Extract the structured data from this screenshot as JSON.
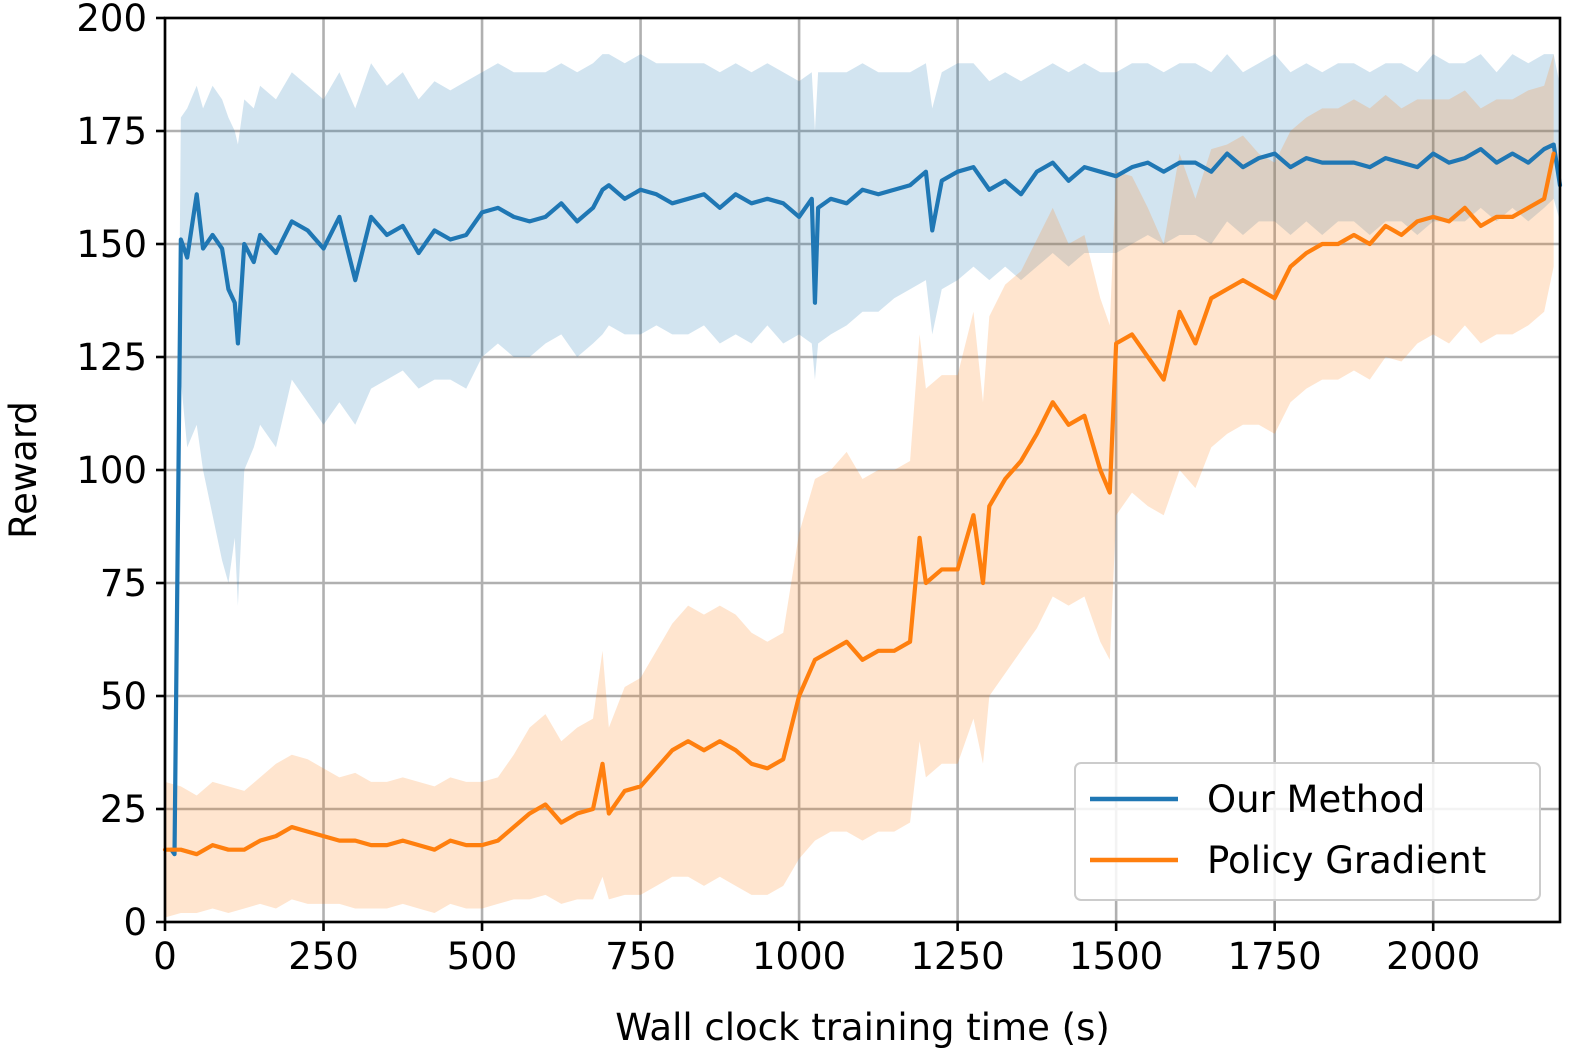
{
  "chart_data": {
    "type": "line",
    "title": "",
    "xlabel": "Wall clock training time (s)",
    "ylabel": "Reward",
    "xlim": [
      0,
      2200
    ],
    "ylim": [
      0,
      200
    ],
    "xticks": [
      0,
      250,
      500,
      750,
      1000,
      1250,
      1500,
      1750,
      2000
    ],
    "xtick_labels": [
      "0",
      "250",
      "500",
      "750",
      "1000",
      "1250",
      "1500",
      "1750",
      "2000"
    ],
    "yticks": [
      0,
      25,
      50,
      75,
      100,
      125,
      150,
      175,
      200
    ],
    "ytick_labels": [
      "0",
      "25",
      "50",
      "75",
      "100",
      "125",
      "150",
      "175",
      "200"
    ],
    "grid": true,
    "legend_position": "lower-right",
    "series": [
      {
        "name": "Our Method",
        "color": "#1f77b4",
        "band_color": "#1f77b4",
        "band_opacity": 0.2,
        "x": [
          10,
          15,
          25,
          35,
          50,
          60,
          75,
          90,
          100,
          110,
          115,
          125,
          140,
          150,
          175,
          200,
          225,
          250,
          275,
          300,
          325,
          350,
          375,
          400,
          425,
          450,
          475,
          500,
          525,
          550,
          575,
          600,
          625,
          650,
          675,
          690,
          700,
          725,
          750,
          775,
          800,
          825,
          850,
          875,
          900,
          925,
          950,
          975,
          1000,
          1020,
          1025,
          1030,
          1050,
          1075,
          1100,
          1125,
          1150,
          1175,
          1200,
          1210,
          1225,
          1250,
          1275,
          1300,
          1325,
          1350,
          1375,
          1400,
          1425,
          1450,
          1475,
          1500,
          1525,
          1550,
          1575,
          1600,
          1625,
          1650,
          1675,
          1700,
          1725,
          1750,
          1775,
          1800,
          1825,
          1850,
          1875,
          1900,
          1925,
          1950,
          1975,
          2000,
          2025,
          2050,
          2075,
          2100,
          2125,
          2150,
          2175,
          2190,
          2200
        ],
        "y": [
          16,
          15,
          151,
          147,
          161,
          149,
          152,
          149,
          140,
          137,
          128,
          150,
          146,
          152,
          148,
          155,
          153,
          149,
          156,
          142,
          156,
          152,
          154,
          148,
          153,
          151,
          152,
          157,
          158,
          156,
          155,
          156,
          159,
          155,
          158,
          162,
          163,
          160,
          162,
          161,
          159,
          160,
          161,
          158,
          161,
          159,
          160,
          159,
          156,
          160,
          137,
          158,
          160,
          159,
          162,
          161,
          162,
          163,
          166,
          153,
          164,
          166,
          167,
          162,
          164,
          161,
          166,
          168,
          164,
          167,
          166,
          165,
          167,
          168,
          166,
          168,
          168,
          166,
          170,
          167,
          169,
          170,
          167,
          169,
          168,
          168,
          168,
          167,
          169,
          168,
          167,
          170,
          168,
          169,
          171,
          168,
          170,
          168,
          171,
          172,
          163
        ],
        "y_lower": [
          16,
          15,
          120,
          105,
          110,
          100,
          90,
          80,
          75,
          85,
          70,
          100,
          105,
          110,
          105,
          120,
          115,
          110,
          115,
          110,
          118,
          120,
          122,
          118,
          120,
          120,
          118,
          125,
          128,
          125,
          125,
          128,
          130,
          125,
          128,
          130,
          132,
          130,
          130,
          132,
          130,
          130,
          132,
          128,
          130,
          128,
          132,
          128,
          130,
          128,
          120,
          128,
          130,
          132,
          135,
          135,
          138,
          140,
          142,
          130,
          140,
          142,
          145,
          142,
          145,
          142,
          145,
          148,
          145,
          148,
          148,
          148,
          150,
          152,
          150,
          152,
          152,
          150,
          155,
          152,
          155,
          155,
          152,
          155,
          152,
          155,
          155,
          152,
          155,
          155,
          152,
          155,
          155,
          155,
          158,
          155,
          158,
          155,
          158,
          160,
          155
        ],
        "y_upper": [
          16,
          15,
          178,
          180,
          185,
          180,
          185,
          182,
          178,
          175,
          172,
          182,
          180,
          185,
          182,
          188,
          185,
          182,
          188,
          180,
          190,
          185,
          188,
          182,
          186,
          184,
          186,
          188,
          190,
          188,
          188,
          188,
          190,
          188,
          190,
          192,
          192,
          190,
          192,
          190,
          190,
          190,
          190,
          188,
          190,
          188,
          190,
          188,
          186,
          188,
          175,
          188,
          188,
          188,
          190,
          188,
          188,
          188,
          190,
          180,
          188,
          190,
          190,
          186,
          188,
          186,
          188,
          190,
          188,
          190,
          188,
          188,
          190,
          190,
          188,
          190,
          190,
          188,
          192,
          188,
          190,
          192,
          188,
          190,
          188,
          190,
          190,
          188,
          190,
          190,
          188,
          192,
          190,
          190,
          192,
          188,
          192,
          190,
          192,
          192,
          185
        ]
      },
      {
        "name": "Policy Gradient",
        "color": "#ff7f0e",
        "band_color": "#ff7f0e",
        "band_opacity": 0.2,
        "x": [
          0,
          25,
          50,
          75,
          100,
          125,
          150,
          175,
          200,
          225,
          250,
          275,
          300,
          325,
          350,
          375,
          400,
          425,
          450,
          475,
          500,
          525,
          550,
          575,
          600,
          625,
          650,
          675,
          690,
          700,
          725,
          750,
          775,
          800,
          825,
          850,
          875,
          900,
          925,
          950,
          975,
          1000,
          1025,
          1050,
          1075,
          1100,
          1125,
          1150,
          1175,
          1190,
          1200,
          1225,
          1250,
          1275,
          1290,
          1300,
          1325,
          1350,
          1375,
          1400,
          1425,
          1450,
          1475,
          1490,
          1500,
          1525,
          1550,
          1575,
          1600,
          1625,
          1650,
          1675,
          1700,
          1725,
          1750,
          1775,
          1800,
          1825,
          1850,
          1875,
          1900,
          1925,
          1950,
          1975,
          2000,
          2025,
          2050,
          2075,
          2100,
          2125,
          2150,
          2175,
          2190
        ],
        "y": [
          16,
          16,
          15,
          17,
          16,
          16,
          18,
          19,
          21,
          20,
          19,
          18,
          18,
          17,
          17,
          18,
          17,
          16,
          18,
          17,
          17,
          18,
          21,
          24,
          26,
          22,
          24,
          25,
          35,
          24,
          29,
          30,
          34,
          38,
          40,
          38,
          40,
          38,
          35,
          34,
          36,
          50,
          58,
          60,
          62,
          58,
          60,
          60,
          62,
          85,
          75,
          78,
          78,
          90,
          75,
          92,
          98,
          102,
          108,
          115,
          110,
          112,
          100,
          95,
          128,
          130,
          125,
          120,
          135,
          128,
          138,
          140,
          142,
          140,
          138,
          145,
          148,
          150,
          150,
          152,
          150,
          154,
          152,
          155,
          156,
          155,
          158,
          154,
          156,
          156,
          158,
          160,
          170
        ],
        "y_lower": [
          1,
          2,
          2,
          3,
          2,
          3,
          4,
          3,
          5,
          4,
          4,
          4,
          3,
          3,
          3,
          4,
          3,
          2,
          4,
          3,
          3,
          4,
          5,
          5,
          6,
          4,
          5,
          5,
          10,
          5,
          6,
          6,
          8,
          10,
          10,
          8,
          10,
          8,
          6,
          6,
          8,
          14,
          18,
          20,
          20,
          18,
          20,
          20,
          22,
          40,
          32,
          35,
          35,
          45,
          35,
          50,
          55,
          60,
          65,
          72,
          70,
          72,
          62,
          58,
          90,
          95,
          92,
          90,
          100,
          96,
          105,
          108,
          110,
          110,
          108,
          115,
          118,
          120,
          120,
          122,
          120,
          125,
          124,
          128,
          130,
          128,
          132,
          128,
          130,
          130,
          132,
          135,
          145
        ],
        "y_upper": [
          31,
          30,
          28,
          31,
          30,
          29,
          32,
          35,
          37,
          36,
          34,
          32,
          33,
          31,
          31,
          32,
          31,
          30,
          32,
          31,
          31,
          32,
          37,
          43,
          46,
          40,
          43,
          45,
          60,
          43,
          52,
          54,
          60,
          66,
          70,
          68,
          70,
          68,
          64,
          62,
          64,
          86,
          98,
          100,
          104,
          98,
          100,
          100,
          102,
          130,
          118,
          121,
          121,
          135,
          115,
          134,
          141,
          144,
          151,
          158,
          150,
          152,
          138,
          132,
          166,
          165,
          158,
          150,
          170,
          160,
          171,
          172,
          174,
          170,
          168,
          175,
          178,
          180,
          180,
          182,
          180,
          183,
          180,
          182,
          182,
          182,
          184,
          180,
          182,
          182,
          184,
          185,
          192
        ]
      }
    ]
  }
}
